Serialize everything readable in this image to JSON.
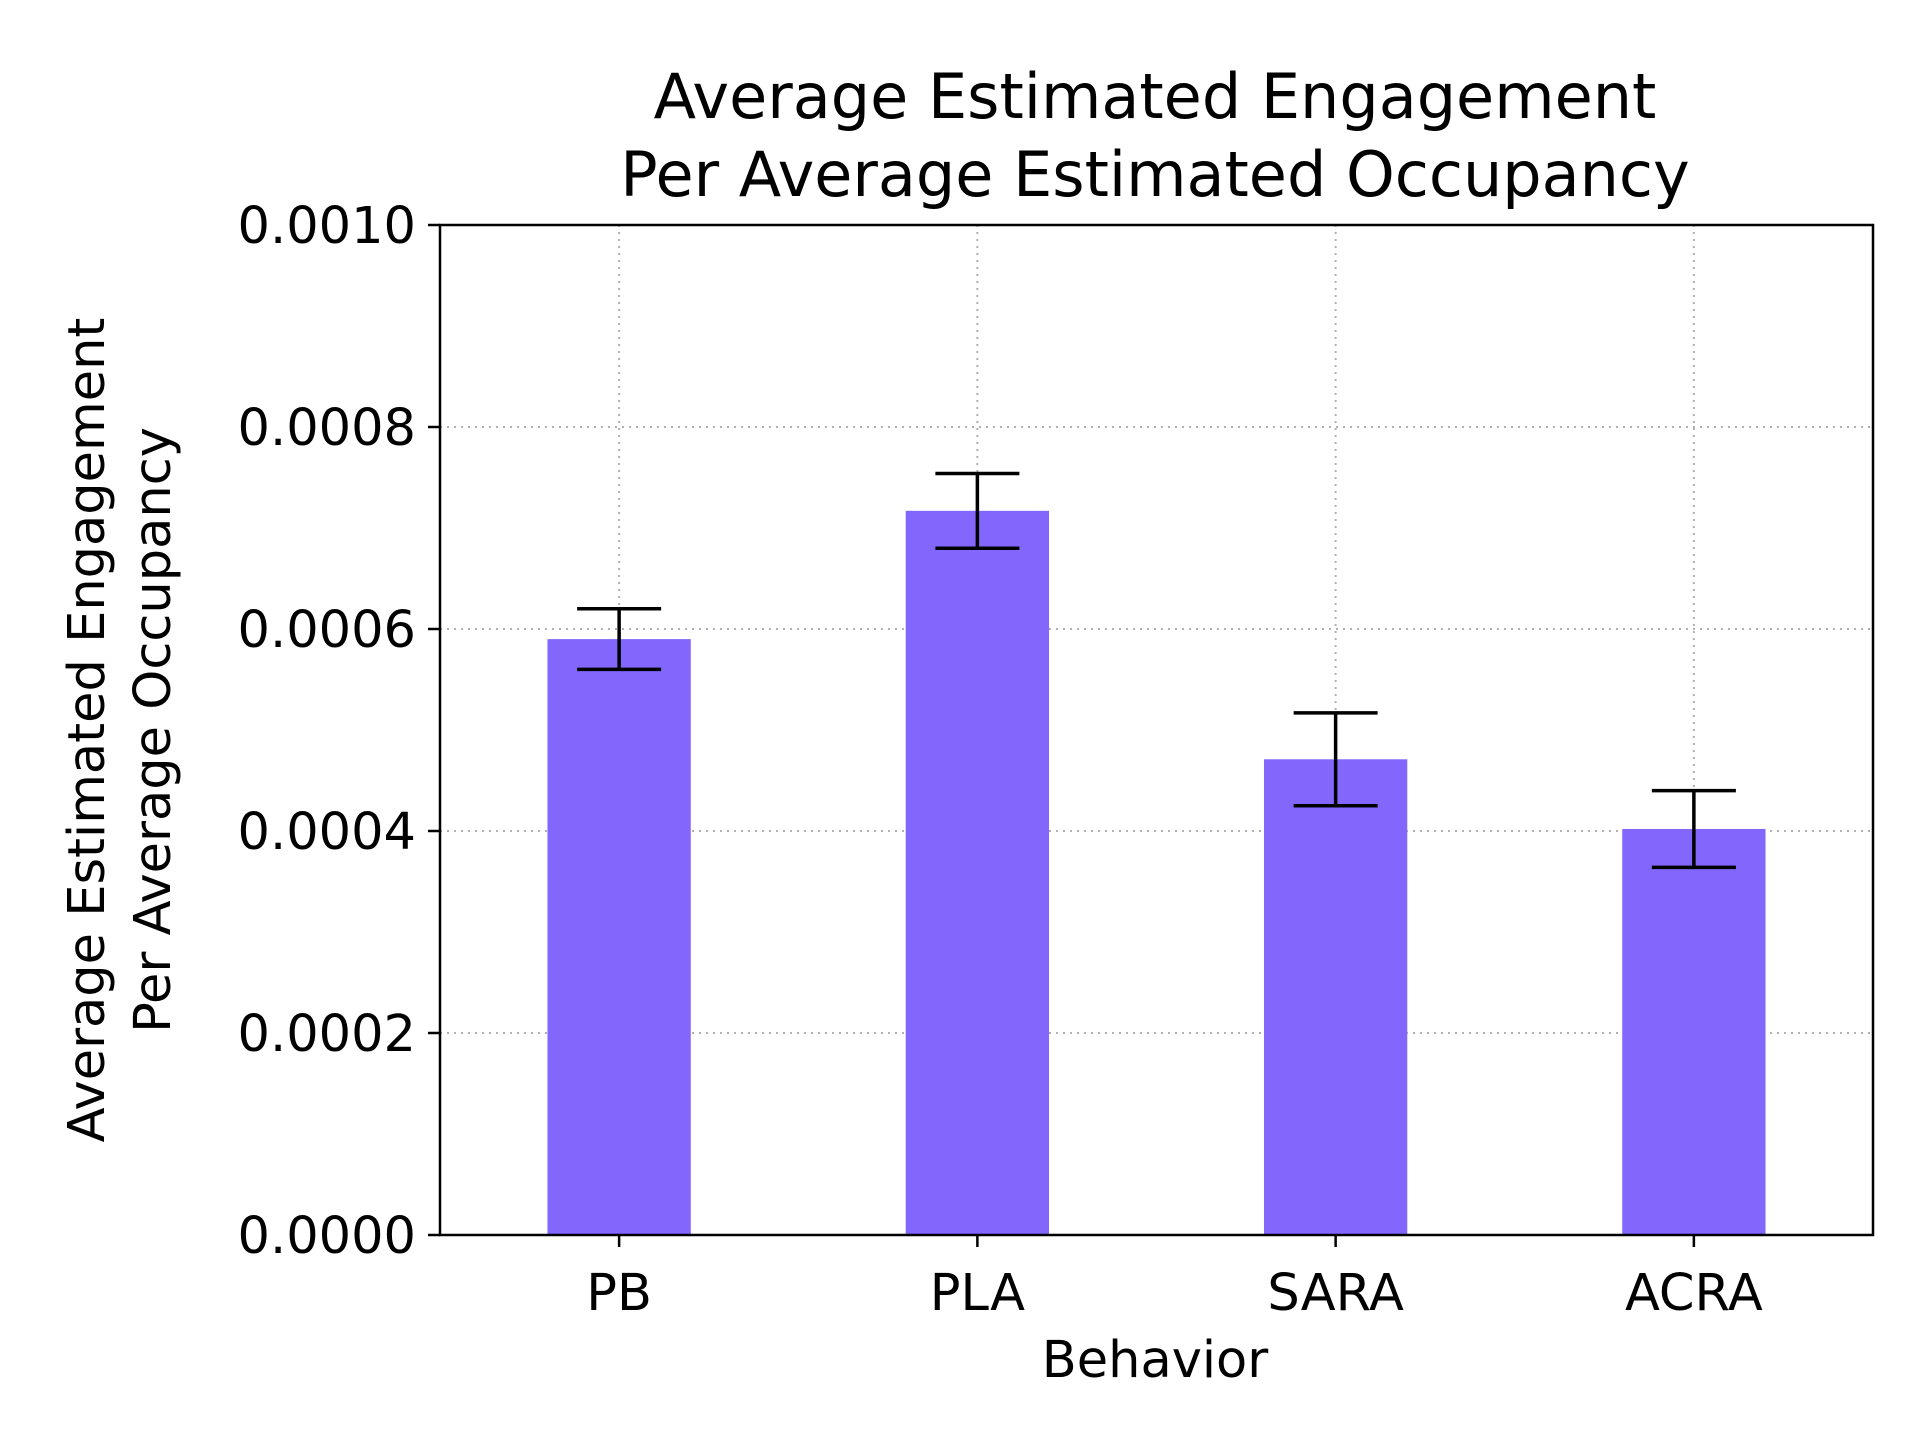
{
  "chart_data": {
    "type": "bar",
    "title_lines": [
      "Average Estimated Engagement",
      "Per Average Estimated Occupancy"
    ],
    "xlabel": "Behavior",
    "ylabel_lines": [
      "Average Estimated Engagement",
      "Per Average Occupancy"
    ],
    "categories": [
      "PB",
      "PLA",
      "SARA",
      "ACRA"
    ],
    "values": [
      0.00059,
      0.000717,
      0.000471,
      0.000402
    ],
    "error_low": [
      0.00056,
      0.00068,
      0.000425,
      0.000364
    ],
    "error_high": [
      0.00062,
      0.000754,
      0.000517,
      0.00044
    ],
    "ylim": [
      0,
      0.001
    ],
    "yticks": [
      0,
      0.0002,
      0.0004,
      0.0006,
      0.0008,
      0.001
    ],
    "ytick_labels": [
      "0.0000",
      "0.0002",
      "0.0004",
      "0.0006",
      "0.0008",
      "0.0010"
    ],
    "grid": true,
    "legend": false,
    "bar_color": "#8367fd",
    "error_color": "#000000",
    "grid_color": "#b0b0b0"
  }
}
